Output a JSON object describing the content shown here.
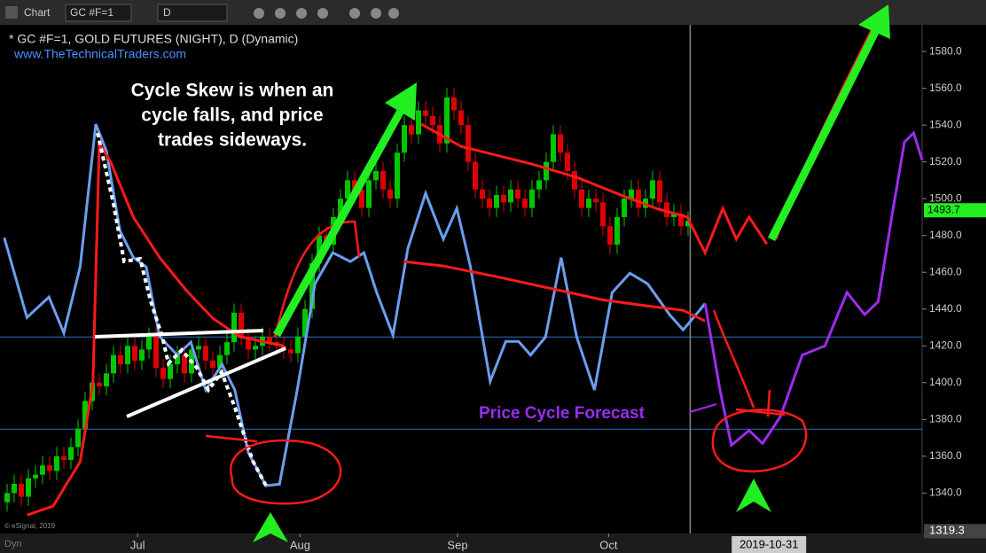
{
  "toolbar": {
    "app": "Chart",
    "symbol": "GC #F=1",
    "interval": "D",
    "mode": "Dyn"
  },
  "chart_data": {
    "type": "candlestick",
    "title": "* GC #F=1, GOLD FUTURES (NIGHT), D (Dynamic)",
    "subtitle": "www.TheTechnicalTraders.com",
    "watermark": "© eSignal, 2019",
    "annotations": [
      "Cycle Skew is when an",
      "cycle falls, and price",
      "trades sideways.",
      "Price Cycle Forecast"
    ],
    "up_color": "#00c800",
    "down_color": "#e00000",
    "open": [
      1335,
      1340,
      1345,
      1338,
      1348,
      1350,
      1355,
      1352,
      1360,
      1358,
      1365,
      1375,
      1390,
      1400,
      1398,
      1405,
      1415,
      1410,
      1420,
      1412,
      1418,
      1425,
      1408,
      1402,
      1410,
      1415,
      1405,
      1418,
      1420,
      1412,
      1408,
      1415,
      1422,
      1438,
      1425,
      1418,
      1420,
      1425,
      1422,
      1420,
      1418,
      1416,
      1425,
      1440,
      1465,
      1480,
      1475,
      1490,
      1500,
      1510,
      1505,
      1495,
      1510,
      1515,
      1505,
      1500,
      1525,
      1540,
      1535,
      1548,
      1545,
      1540,
      1530,
      1555,
      1548,
      1540,
      1520,
      1505,
      1500,
      1495,
      1502,
      1498,
      1505,
      1500,
      1495,
      1505,
      1510,
      1520,
      1535,
      1525,
      1515,
      1505,
      1495,
      1500,
      1498,
      1485,
      1475,
      1490,
      1500,
      1505,
      1495,
      1500,
      1510,
      1498,
      1490,
      1492,
      1485
    ],
    "high": [
      1345,
      1350,
      1350,
      1353,
      1355,
      1360,
      1360,
      1365,
      1365,
      1370,
      1380,
      1395,
      1405,
      1405,
      1410,
      1420,
      1420,
      1425,
      1425,
      1423,
      1430,
      1430,
      1413,
      1415,
      1420,
      1420,
      1423,
      1425,
      1425,
      1417,
      1420,
      1427,
      1443,
      1443,
      1430,
      1425,
      1430,
      1430,
      1427,
      1425,
      1423,
      1430,
      1445,
      1470,
      1485,
      1485,
      1495,
      1505,
      1515,
      1515,
      1510,
      1515,
      1520,
      1520,
      1510,
      1530,
      1545,
      1545,
      1553,
      1553,
      1550,
      1545,
      1560,
      1560,
      1553,
      1545,
      1525,
      1510,
      1505,
      1507,
      1507,
      1510,
      1510,
      1505,
      1510,
      1515,
      1525,
      1540,
      1540,
      1530,
      1520,
      1510,
      1505,
      1505,
      1503,
      1490,
      1495,
      1505,
      1510,
      1510,
      1505,
      1515,
      1515,
      1503,
      1497,
      1497,
      1493
    ],
    "low": [
      1330,
      1335,
      1333,
      1333,
      1343,
      1345,
      1347,
      1347,
      1353,
      1353,
      1360,
      1370,
      1385,
      1393,
      1393,
      1400,
      1405,
      1405,
      1407,
      1407,
      1413,
      1403,
      1397,
      1397,
      1405,
      1400,
      1400,
      1413,
      1407,
      1403,
      1403,
      1410,
      1417,
      1420,
      1413,
      1413,
      1415,
      1417,
      1415,
      1413,
      1411,
      1411,
      1420,
      1435,
      1460,
      1470,
      1470,
      1485,
      1495,
      1500,
      1490,
      1490,
      1505,
      1500,
      1495,
      1495,
      1520,
      1530,
      1530,
      1540,
      1535,
      1525,
      1525,
      1543,
      1535,
      1515,
      1500,
      1495,
      1490,
      1490,
      1493,
      1493,
      1495,
      1490,
      1490,
      1500,
      1505,
      1515,
      1520,
      1510,
      1500,
      1490,
      1490,
      1493,
      1480,
      1470,
      1470,
      1485,
      1495,
      1490,
      1490,
      1495,
      1493,
      1485,
      1485,
      1480,
      1480
    ],
    "close": [
      1340,
      1345,
      1338,
      1348,
      1350,
      1355,
      1352,
      1360,
      1358,
      1365,
      1375,
      1390,
      1400,
      1398,
      1405,
      1415,
      1410,
      1420,
      1412,
      1418,
      1425,
      1408,
      1402,
      1410,
      1415,
      1405,
      1418,
      1420,
      1412,
      1408,
      1415,
      1422,
      1438,
      1425,
      1418,
      1420,
      1425,
      1422,
      1420,
      1418,
      1416,
      1425,
      1440,
      1465,
      1480,
      1475,
      1490,
      1500,
      1510,
      1505,
      1495,
      1510,
      1515,
      1505,
      1500,
      1525,
      1540,
      1535,
      1548,
      1545,
      1540,
      1530,
      1555,
      1548,
      1540,
      1520,
      1505,
      1500,
      1495,
      1502,
      1498,
      1505,
      1500,
      1495,
      1505,
      1510,
      1520,
      1535,
      1525,
      1515,
      1505,
      1495,
      1500,
      1498,
      1485,
      1475,
      1490,
      1500,
      1505,
      1495,
      1500,
      1510,
      1498,
      1490,
      1492,
      1485,
      1488
    ],
    "series": [
      {
        "color": "#6a9ff0",
        "x": [
          0.6,
          3.8,
          6.9,
          9,
          11.3,
          13.5,
          15,
          16.9,
          18.8,
          20.6,
          22.5,
          25,
          26.9,
          29,
          31.3,
          33.1,
          35,
          37.5,
          39.4,
          41.9,
          44.4,
          46.9,
          49.4,
          51.3,
          53.1,
          55.4,
          57.5,
          60,
          62.5,
          64.4,
          66.3,
          69.1,
          71.3,
          73.1,
          74.8,
          76.9,
          79.1,
          81.3,
          83.8,
          86.3,
          88.8,
          91.3,
          94.4,
          96.3,
          98.1,
          99.4
        ],
        "values": [
          1478.8,
          1435.4,
          1446.5,
          1427,
          1463,
          1540.5,
          1526,
          1482.7,
          1468,
          1463,
          1425,
          1415,
          1422,
          1396,
          1410,
          1396,
          1362,
          1344,
          1344.8,
          1396,
          1453.7,
          1470.6,
          1465.8,
          1470.6,
          1449,
          1425.8,
          1473,
          1502.9,
          1478,
          1494.7,
          1463.4,
          1400.7,
          1422.4,
          1422.4,
          1415,
          1424.8,
          1468,
          1424.8,
          1396,
          1449,
          1459.5,
          1453.7,
          1436.9,
          1428.7,
          1436.9,
          1443
        ]
      },
      {
        "color": "#9a2cf0",
        "x": [
          99.4,
          101.5,
          103.1,
          105.6,
          107.5,
          110,
          113.1,
          116.3,
          119.4,
          121.9,
          123.8,
          125.6,
          127.5,
          128.8,
          130
        ],
        "values": [
          1443,
          1396,
          1366,
          1374,
          1367,
          1381.4,
          1415,
          1420,
          1449,
          1437,
          1444,
          1487.5,
          1530.8,
          1535.7,
          1521
        ]
      },
      {
        "color": "#ff1a1a",
        "x": [
          3.8,
          7.5,
          11.3,
          13.1,
          14,
          15.6,
          18.8,
          22.5,
          26.3,
          30,
          33.8,
          37.5,
          40,
          50,
          59.4,
          65,
          70,
          75,
          81.3,
          87.5,
          92.5,
          96.9,
          99.4,
          101.9,
          103.8,
          105.6,
          108.1
        ],
        "values": [
          1328,
          1333,
          1357,
          1400,
          1530,
          1520,
          1490,
          1468,
          1450,
          1435,
          1425,
          1422,
          1420,
          null,
          1540.5,
          1528.4,
          1523.6,
          1518.8,
          1511.6,
          1502,
          1494.7,
          1490,
          1470.6,
          1494.7,
          1478,
          1490,
          1475.4
        ]
      },
      {
        "color": "#ff1a1a",
        "x": [
          56.9,
          62.5,
          70,
          77.5,
          85,
          91.3,
          96.3,
          99.4
        ],
        "values": [
          1465.8,
          1463.4,
          1457.6,
          1451.3,
          1445,
          1441.7,
          1439.3,
          1433.5
        ]
      }
    ],
    "hlines": [
      1424.8,
      1374.7
    ],
    "cursor_x": 97.3,
    "cursor_label": {
      "value": 108.4,
      "label": "2019-10-31"
    },
    "last_price": 1493.7,
    "axis_low": 1319.3,
    "xlim": [
      0,
      130
    ],
    "ylim": [
      1318,
      1594.5
    ],
    "xticks": [
      {
        "value": 19.4,
        "label": "Jul"
      },
      {
        "value": 42.3,
        "label": "Aug"
      },
      {
        "value": 64.5,
        "label": "Sep"
      },
      {
        "value": 85.8,
        "label": "Oct"
      }
    ],
    "yticks": [
      {
        "value": 1340,
        "label": "1340.0"
      },
      {
        "value": 1360,
        "label": "1360.0"
      },
      {
        "value": 1380,
        "label": "1380.0"
      },
      {
        "value": 1400,
        "label": "1400.0"
      },
      {
        "value": 1420,
        "label": "1420.0"
      },
      {
        "value": 1440,
        "label": "1440.0"
      },
      {
        "value": 1460,
        "label": "1460.0"
      },
      {
        "value": 1480,
        "label": "1480.0"
      },
      {
        "value": 1500,
        "label": "1500.0"
      },
      {
        "value": 1520,
        "label": "1520.0"
      },
      {
        "value": 1540,
        "label": "1540.0"
      },
      {
        "value": 1560,
        "label": "1560.0"
      },
      {
        "value": 1580,
        "label": "1580.0"
      }
    ]
  }
}
